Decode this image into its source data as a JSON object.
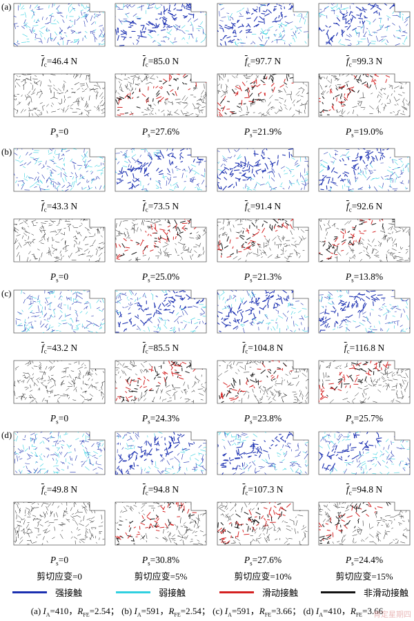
{
  "groups": [
    {
      "label": "(a)",
      "forces": [
        "46.4 N",
        "85.0 N",
        "97.7 N",
        "99.3 N"
      ],
      "ps": [
        "0",
        "27.6%",
        "21.9%",
        "19.0%"
      ]
    },
    {
      "label": "(b)",
      "forces": [
        "43.3 N",
        "73.5 N",
        "91.4 N",
        "92.6 N"
      ],
      "ps": [
        "0",
        "25.0%",
        "21.3%",
        "13.8%"
      ]
    },
    {
      "label": "(c)",
      "forces": [
        "43.2 N",
        "85.5 N",
        "104.8 N",
        "116.8 N"
      ],
      "ps": [
        "0",
        "24.3%",
        "23.8%",
        "25.7%"
      ]
    },
    {
      "label": "(d)",
      "forces": [
        "49.8 N",
        "94.8 N",
        "107.3 N",
        "94.8 N"
      ],
      "ps": [
        "0",
        "30.8%",
        "27.6%",
        "24.4%"
      ]
    }
  ],
  "strains": [
    "剪切应变=0",
    "剪切应变=5%",
    "剪切应变=10%",
    "剪切应变=15%"
  ],
  "legend": [
    {
      "label": "强接触",
      "color": "#1a2fb0"
    },
    {
      "label": "弱接触",
      "color": "#2fd0e0"
    },
    {
      "label": "滑动接触",
      "color": "#d42020"
    },
    {
      "label": "非滑动接触",
      "color": "#111111"
    }
  ],
  "params": [
    {
      "label": "(a)",
      "IA": "410",
      "RFE": "2.54",
      "sep": "；"
    },
    {
      "label": "(b)",
      "IA": "591",
      "RFE": "2.54",
      "sep": "；"
    },
    {
      "label": "(c)",
      "IA": "591",
      "RFE": "3.66",
      "sep": "；"
    },
    {
      "label": "(d)",
      "IA": "410",
      "RFE": "3.66",
      "sep": ""
    }
  ],
  "symbols": {
    "force_sym": "f",
    "force_sub": "c",
    "ps_sym": "P",
    "ps_sub": "s",
    "ia_sym": "I",
    "ia_sub": "A",
    "rfe_sym": "R",
    "rfe_sub": "FE",
    "eq": "=",
    "comma": "，"
  },
  "watermark": "肯定星期四"
}
